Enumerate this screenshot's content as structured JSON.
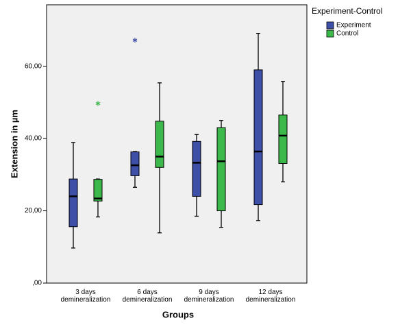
{
  "chart_data": {
    "type": "box",
    "ylabel": "Extension in µm",
    "xlabel": "Groups",
    "legend_title": "Experiment-Control",
    "legend_position": "right",
    "categories": [
      "3 days demineralization",
      "6 days demineralization",
      "9 days demineralization",
      "12 days demineralization"
    ],
    "ylim": [
      0,
      77
    ],
    "yticks": [
      {
        "value": 0,
        "label": ",00"
      },
      {
        "value": 20,
        "label": "20,00"
      },
      {
        "value": 40,
        "label": "40,00"
      },
      {
        "value": 60,
        "label": "60,00"
      }
    ],
    "series": [
      {
        "name": "Experiment",
        "color": "#3e4fa8",
        "min": [
          9.7,
          26.5,
          18.5,
          17.3
        ],
        "q1": [
          15.6,
          29.7,
          24.0,
          21.7
        ],
        "median": [
          24.0,
          32.6,
          33.3,
          36.4
        ],
        "q3": [
          28.8,
          36.3,
          39.2,
          59.0
        ],
        "max": [
          38.9,
          36.4,
          41.1,
          69.1
        ],
        "outliers": [
          [],
          [
            67.2
          ],
          [],
          []
        ]
      },
      {
        "name": "Control",
        "color": "#3cb94a",
        "min": [
          18.3,
          13.9,
          15.4,
          28.0
        ],
        "q1": [
          22.7,
          32.0,
          20.0,
          33.1
        ],
        "median": [
          23.4,
          35.0,
          33.7,
          40.8
        ],
        "q3": [
          28.7,
          44.8,
          43.0,
          46.5
        ],
        "max": [
          28.8,
          55.4,
          45.0,
          55.8
        ],
        "outliers": [
          [
            49.7
          ],
          [],
          [],
          []
        ]
      }
    ]
  }
}
